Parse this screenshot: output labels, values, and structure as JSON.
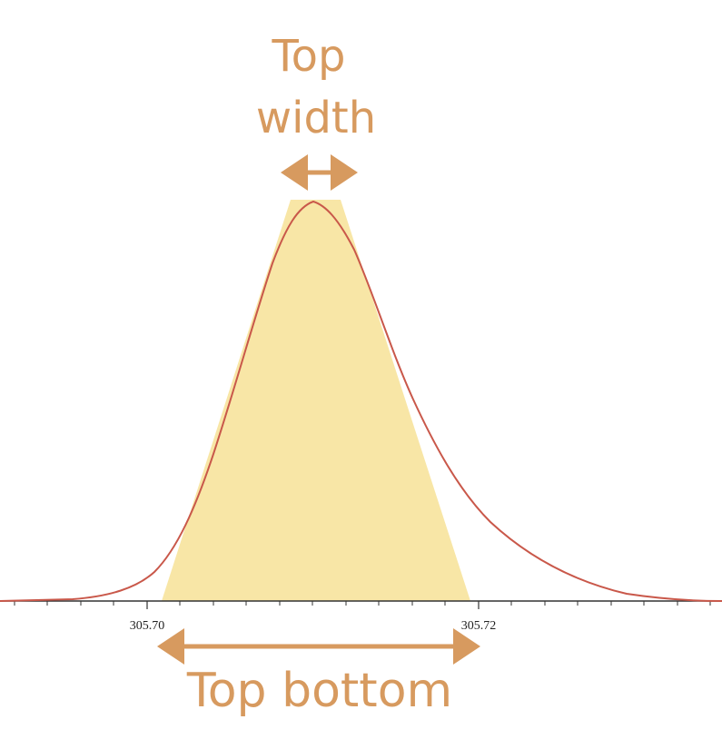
{
  "top_label": {
    "line1": "Top",
    "line2": "width"
  },
  "bottom_label": "Top bottom",
  "x_axis": {
    "tick_labels": [
      "305.70",
      "305.72"
    ]
  }
}
